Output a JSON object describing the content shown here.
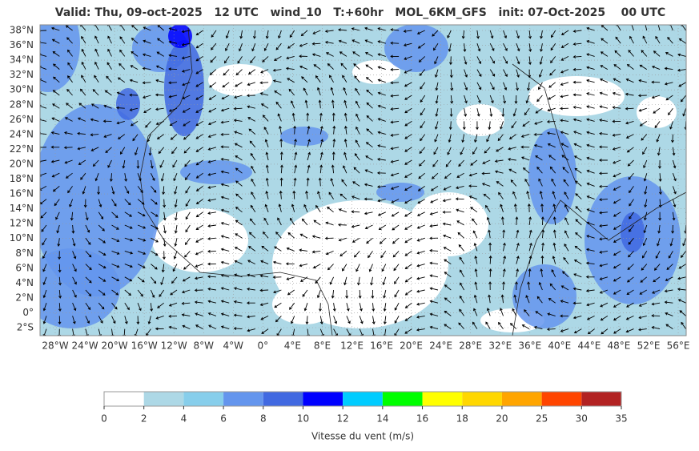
{
  "header": {
    "title": "Valid: Thu, 09-oct-2025   12 UTC   wind_10   T:+60hr   MOL_6KM_GFS   init: 07-Oct-2025    00 UTC"
  },
  "map": {
    "lat_labels": [
      "38°N",
      "36°N",
      "34°N",
      "32°N",
      "30°N",
      "28°N",
      "26°N",
      "24°N",
      "22°N",
      "20°N",
      "18°N",
      "16°N",
      "14°N",
      "12°N",
      "10°N",
      "8°N",
      "6°N",
      "4°N",
      "2°N",
      "0°",
      "2°S"
    ],
    "lon_labels": [
      "28°W",
      "24°W",
      "20°W",
      "16°W",
      "12°W",
      "8°W",
      "4°W",
      "0°",
      "4°E",
      "8°E",
      "12°E",
      "16°E",
      "20°E",
      "24°E",
      "28°E",
      "32°E",
      "36°E",
      "40°E",
      "44°E",
      "48°E",
      "52°E",
      "56°E"
    ]
  },
  "colorbar": {
    "ticks": [
      0,
      2,
      4,
      6,
      8,
      10,
      12,
      14,
      16,
      18,
      20,
      25,
      30,
      35
    ],
    "colors": [
      "#ffffff",
      "#add8e6",
      "#87ceeb",
      "#6495ed",
      "#4169e1",
      "#0000ff",
      "#00ccff",
      "#00ff00",
      "#ffff00",
      "#ffd700",
      "#ffa500",
      "#ff4500",
      "#b22222"
    ],
    "label": "Vitesse du vent (m/s)"
  }
}
